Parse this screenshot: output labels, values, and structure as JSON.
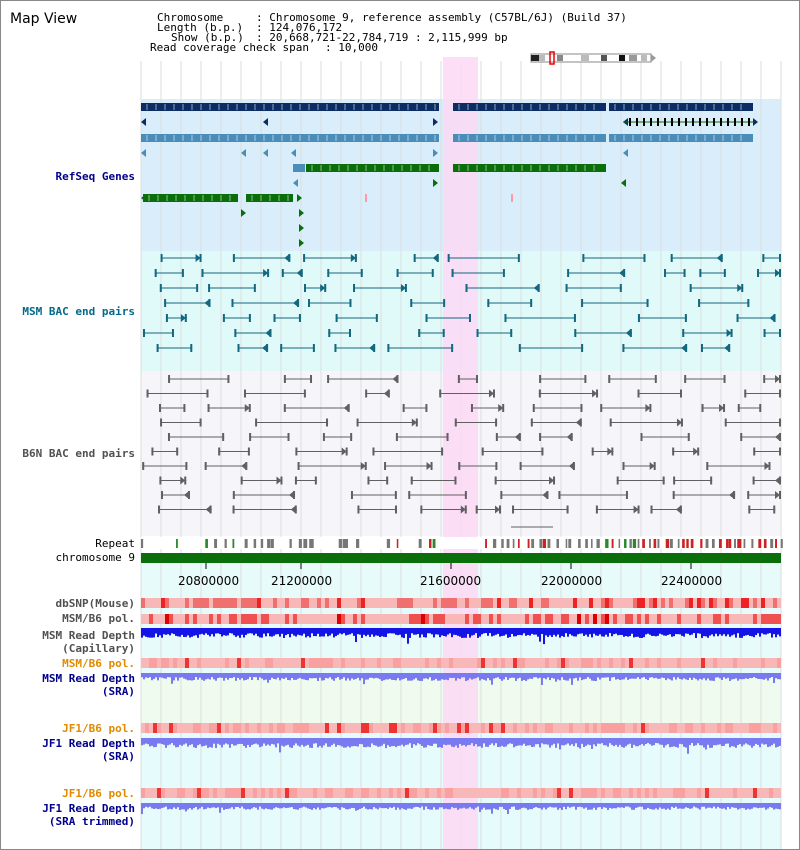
{
  "app": {
    "title": "Map View"
  },
  "info": {
    "chrom_key": "Chromosome",
    "chrom_val": ": Chromosome 9, reference assembly (C57BL/6J) (Build 37)",
    "len_key": "Length (b.p.)",
    "len_val": ": 124,076,172",
    "show_key": "Show (b.p.)",
    "show_val": ": 20,668,721-22,784,719 : 2,115,999 bp",
    "span_key": "Read coverage check span",
    "span_val": ": 10,000"
  },
  "tracks": {
    "refseq": "RefSeq Genes",
    "msm_bac": "MSM BAC end pairs",
    "b6n_bac": "B6N BAC end pairs",
    "repeat": "Repeat",
    "chromosome": "chromosome 9",
    "dbsnp": "dbSNP(Mouse)",
    "msm_pol": "MSM/B6 pol.",
    "msm_depth_cap_1": "MSM Read Depth",
    "msm_depth_cap_2": "(Capillary)",
    "msm_pol_sra": "MSM/B6 pol.",
    "msm_depth_sra_1": "MSM Read Depth",
    "msm_depth_sra_2": "(SRA)",
    "jf1_pol": "JF1/B6 pol.",
    "jf1_depth_1": "JF1 Read Depth",
    "jf1_depth_2": "(SRA)",
    "jf1_pol_trim": "JF1/B6 pol.",
    "jf1_trim_1": "JF1 Read Depth",
    "jf1_trim_2": "(SRA trimmed)"
  },
  "axis": {
    "ticks": [
      "20800000",
      "21200000",
      "21600000",
      "22000000",
      "22400000"
    ]
  },
  "colors": {
    "refseq_bg": "#d9eefa",
    "bac_bg": "#e0fafa",
    "b6n_bg": "#f6f6fa",
    "highlight": "#fbd8f4",
    "gene_navy": "#0c2d63",
    "gene_blue": "#4a8db8",
    "gene_green": "#0a6e0a",
    "chrom_green": "#0a6e0a",
    "bac_teal": "#13677f",
    "bac_gray": "#606060",
    "depth_blue": "#1414e6",
    "depth_light": "#7a7af0",
    "snp_red": "#f07070"
  }
}
